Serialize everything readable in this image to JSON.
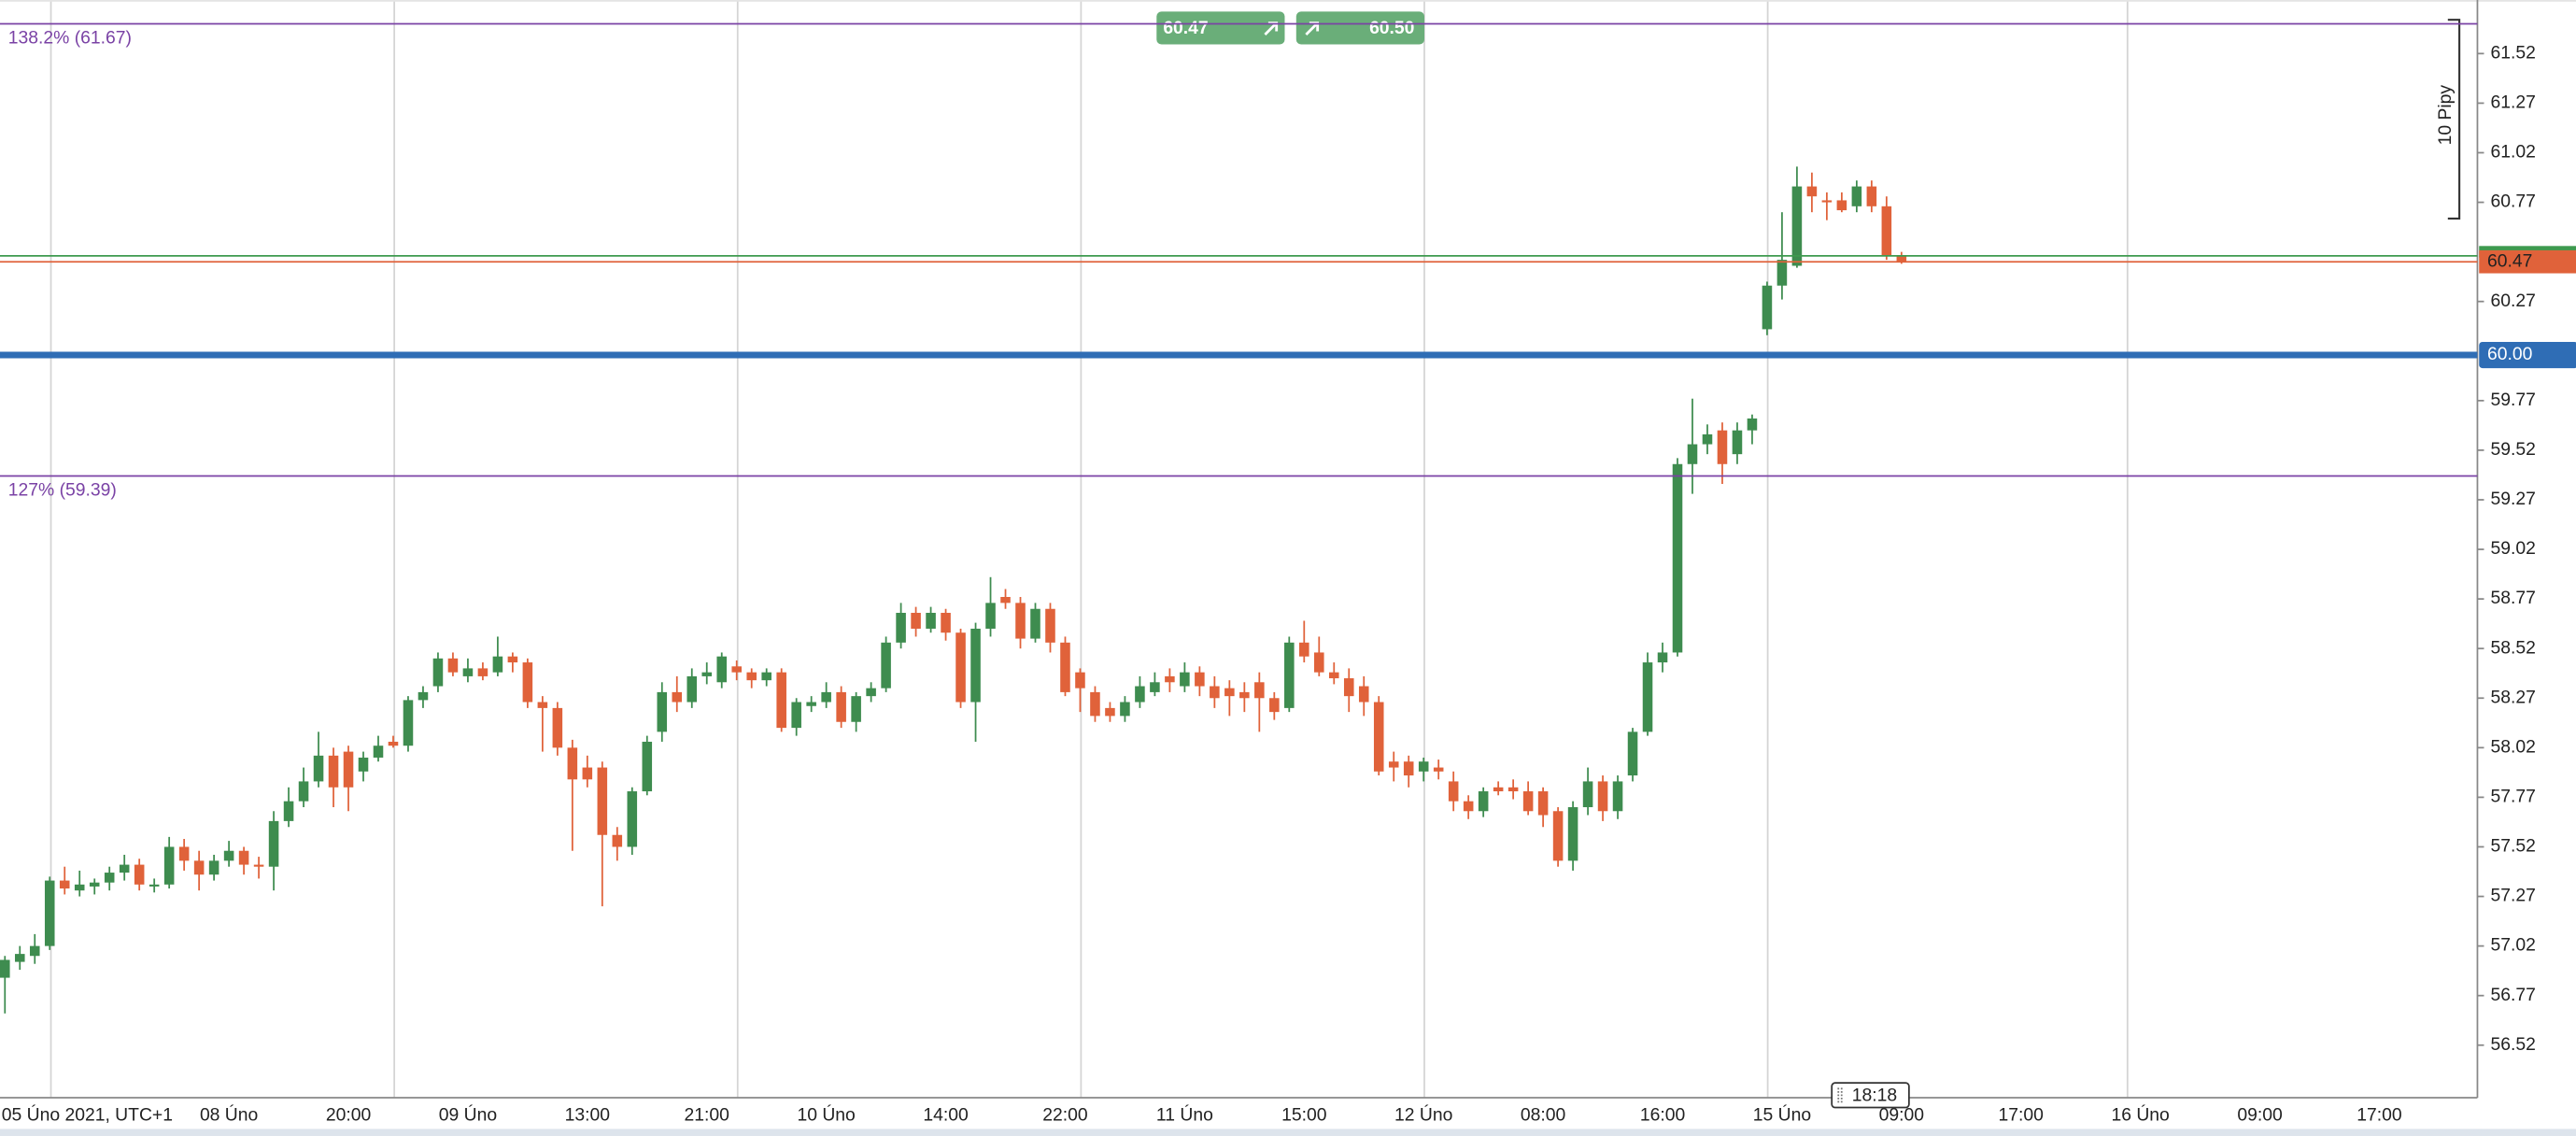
{
  "chart_data": {
    "type": "candlestick",
    "categories": [
      null,
      null,
      null,
      "05 Úno 2021, UTC+1",
      null,
      null,
      null,
      null,
      null,
      null,
      null,
      null,
      null,
      null,
      null,
      "08 Úno",
      null,
      null,
      null,
      null,
      null,
      null,
      null,
      "20:00",
      null,
      null,
      null,
      null,
      null,
      null,
      null,
      "09 Úno",
      null,
      null,
      null,
      null,
      null,
      null,
      null,
      "13:00",
      null,
      null,
      null,
      null,
      null,
      null,
      null,
      "21:00",
      null,
      null,
      null,
      null,
      null,
      null,
      null,
      "10 Úno",
      null,
      null,
      null,
      null,
      null,
      null,
      null,
      "14:00",
      null,
      null,
      null,
      null,
      null,
      null,
      null,
      "22:00",
      null,
      null,
      null,
      null,
      null,
      null,
      null,
      "11 Úno",
      null,
      null,
      null,
      null,
      null,
      null,
      null,
      "15:00",
      null,
      null,
      null,
      null,
      null,
      null,
      null,
      "12 Úno",
      null,
      null,
      null,
      null,
      null,
      null,
      null,
      "08:00",
      null,
      null,
      null,
      null,
      null,
      null,
      null,
      "16:00",
      null,
      null,
      null,
      null,
      null,
      null,
      null,
      "15 Úno",
      null,
      null,
      null,
      null,
      null,
      null,
      null,
      "09:00",
      null,
      null,
      null,
      null,
      null,
      null,
      null,
      "17:00",
      null,
      null,
      null,
      null,
      null,
      null,
      null,
      "16 Úno",
      null,
      null,
      null,
      null,
      null,
      null,
      null,
      "09:00",
      null,
      null,
      null,
      null,
      null,
      null,
      null,
      "17:00",
      null,
      null,
      null,
      null,
      null,
      null
    ],
    "open": [
      56.86,
      56.94,
      56.97,
      57.02,
      57.35,
      57.3,
      57.32,
      57.34,
      57.39,
      57.43,
      57.32,
      57.33,
      57.52,
      57.45,
      57.38,
      57.45,
      57.5,
      57.43,
      57.42,
      57.65,
      57.75,
      57.85,
      57.98,
      58.0,
      57.9,
      57.97,
      58.05,
      58.03,
      58.26,
      58.33,
      58.47,
      58.38,
      58.42,
      58.4,
      58.48,
      58.45,
      58.25,
      58.22,
      58.02,
      57.92,
      57.92,
      57.58,
      57.52,
      57.8,
      58.1,
      58.3,
      58.25,
      58.38,
      58.35,
      58.43,
      58.4,
      58.36,
      58.4,
      58.12,
      58.23,
      58.25,
      58.3,
      58.15,
      58.28,
      58.32,
      58.55,
      58.7,
      58.62,
      58.7,
      58.6,
      58.25,
      58.62,
      58.78,
      58.75,
      58.57,
      58.72,
      58.55,
      58.4,
      58.3,
      58.22,
      58.18,
      58.25,
      58.3,
      58.38,
      58.33,
      58.4,
      58.33,
      58.32,
      58.3,
      58.35,
      58.27,
      58.22,
      58.55,
      58.5,
      58.4,
      58.37,
      58.33,
      58.25,
      57.95,
      57.95,
      57.9,
      57.92,
      57.85,
      57.75,
      57.7,
      57.82,
      57.82,
      57.8,
      57.8,
      57.7,
      57.45,
      57.72,
      57.85,
      57.7,
      57.88,
      58.1,
      58.45,
      58.5,
      59.45,
      59.55,
      59.62,
      59.5,
      59.62,
      60.13,
      60.35,
      60.45,
      60.85,
      60.78,
      60.78,
      60.75,
      60.85,
      60.75,
      60.5,
      null,
      null,
      null,
      null,
      null,
      null,
      null,
      null,
      null,
      null,
      null,
      null,
      null,
      null,
      null,
      null,
      null,
      null,
      null,
      null,
      null,
      null,
      null,
      null,
      null,
      null,
      null,
      null,
      null,
      null,
      null,
      null,
      null,
      null,
      null,
      null,
      null,
      null
    ],
    "high": [
      56.97,
      57.02,
      57.08,
      57.37,
      57.42,
      57.4,
      57.36,
      57.42,
      57.48,
      57.46,
      57.36,
      57.57,
      57.56,
      57.5,
      57.48,
      57.55,
      57.52,
      57.47,
      57.7,
      57.82,
      57.92,
      58.1,
      58.02,
      58.03,
      58.0,
      58.08,
      58.08,
      58.28,
      58.33,
      58.5,
      58.5,
      58.47,
      58.45,
      58.58,
      58.5,
      58.47,
      58.28,
      58.25,
      58.06,
      57.98,
      57.95,
      57.62,
      57.82,
      58.08,
      58.35,
      58.38,
      58.42,
      58.45,
      58.5,
      58.46,
      58.42,
      58.42,
      58.42,
      58.27,
      58.28,
      58.35,
      58.33,
      58.3,
      58.35,
      58.58,
      58.75,
      58.73,
      58.73,
      58.72,
      58.62,
      58.65,
      58.88,
      58.82,
      58.78,
      58.75,
      58.75,
      58.58,
      58.42,
      58.33,
      58.25,
      58.28,
      58.38,
      58.4,
      58.42,
      58.45,
      58.43,
      58.38,
      58.36,
      58.35,
      58.4,
      58.3,
      58.58,
      58.66,
      58.58,
      58.45,
      58.42,
      58.38,
      58.28,
      58.0,
      57.98,
      57.97,
      57.96,
      57.9,
      57.78,
      57.82,
      57.85,
      57.86,
      57.85,
      57.82,
      57.72,
      57.75,
      57.92,
      57.88,
      57.88,
      58.12,
      58.5,
      58.55,
      59.48,
      59.78,
      59.65,
      59.66,
      59.66,
      59.7,
      60.37,
      60.72,
      60.95,
      60.92,
      60.82,
      60.82,
      60.88,
      60.88,
      60.8,
      60.52,
      null,
      null,
      null,
      null,
      null,
      null,
      null,
      null,
      null,
      null,
      null,
      null,
      null,
      null,
      null,
      null,
      null,
      null,
      null,
      null,
      null,
      null,
      null,
      null,
      null,
      null,
      null,
      null,
      null,
      null,
      null,
      null,
      null,
      null,
      null,
      null,
      null,
      null
    ],
    "low": [
      56.68,
      56.9,
      56.93,
      57.0,
      57.28,
      57.27,
      57.28,
      57.3,
      57.35,
      57.3,
      57.29,
      57.31,
      57.4,
      57.3,
      57.35,
      57.42,
      57.38,
      57.36,
      57.3,
      57.62,
      57.72,
      57.82,
      57.72,
      57.7,
      57.85,
      57.95,
      58.02,
      58.0,
      58.22,
      58.3,
      58.38,
      58.35,
      58.36,
      58.38,
      58.4,
      58.22,
      58.0,
      57.98,
      57.5,
      57.82,
      57.22,
      57.45,
      57.48,
      57.78,
      58.05,
      58.2,
      58.22,
      58.34,
      58.32,
      58.36,
      58.32,
      58.33,
      58.1,
      58.08,
      58.2,
      58.22,
      58.12,
      58.1,
      58.25,
      58.3,
      58.52,
      58.58,
      58.6,
      58.56,
      58.22,
      58.05,
      58.58,
      58.72,
      58.52,
      58.55,
      58.5,
      58.28,
      58.2,
      58.15,
      58.15,
      58.15,
      58.22,
      58.28,
      58.3,
      58.3,
      58.28,
      58.22,
      58.18,
      58.2,
      58.1,
      58.16,
      58.2,
      58.45,
      58.38,
      58.34,
      58.2,
      58.18,
      57.88,
      57.85,
      57.82,
      57.85,
      57.86,
      57.7,
      57.66,
      57.67,
      57.78,
      57.76,
      57.68,
      57.62,
      57.42,
      57.4,
      57.68,
      57.65,
      57.66,
      57.85,
      58.08,
      58.4,
      58.48,
      59.3,
      59.5,
      59.35,
      59.45,
      59.55,
      60.1,
      60.28,
      60.44,
      60.72,
      60.68,
      60.72,
      60.72,
      60.72,
      60.48,
      60.46,
      null,
      null,
      null,
      null,
      null,
      null,
      null,
      null,
      null,
      null,
      null,
      null,
      null,
      null,
      null,
      null,
      null,
      null,
      null,
      null,
      null,
      null,
      null,
      null,
      null,
      null,
      null,
      null,
      null,
      null,
      null,
      null,
      null,
      null,
      null,
      null,
      null,
      null
    ],
    "close": [
      56.95,
      56.98,
      57.02,
      57.35,
      57.31,
      57.33,
      57.34,
      57.39,
      57.43,
      57.33,
      57.33,
      57.52,
      57.45,
      57.38,
      57.45,
      57.5,
      57.43,
      57.42,
      57.65,
      57.75,
      57.85,
      57.98,
      57.82,
      57.82,
      57.97,
      58.03,
      58.03,
      58.26,
      58.3,
      58.47,
      58.4,
      58.42,
      58.38,
      58.48,
      58.45,
      58.25,
      58.22,
      58.02,
      57.86,
      57.86,
      57.58,
      57.52,
      57.8,
      58.05,
      58.3,
      58.25,
      58.38,
      58.4,
      58.48,
      58.4,
      58.36,
      58.4,
      58.12,
      58.25,
      58.25,
      58.3,
      58.15,
      58.28,
      58.32,
      58.55,
      58.7,
      58.62,
      58.7,
      58.6,
      58.25,
      58.62,
      58.75,
      58.75,
      58.57,
      58.72,
      58.55,
      58.3,
      58.32,
      58.18,
      58.18,
      58.25,
      58.33,
      58.35,
      58.35,
      58.4,
      58.33,
      58.27,
      58.28,
      58.27,
      58.27,
      58.2,
      58.55,
      58.48,
      58.4,
      58.37,
      58.28,
      58.25,
      57.9,
      57.92,
      57.88,
      57.95,
      57.9,
      57.75,
      57.7,
      57.8,
      57.8,
      57.8,
      57.7,
      57.68,
      57.45,
      57.72,
      57.85,
      57.7,
      57.85,
      58.1,
      58.45,
      58.5,
      59.45,
      59.55,
      59.6,
      59.45,
      59.62,
      59.68,
      60.35,
      60.48,
      60.85,
      60.8,
      60.77,
      60.73,
      60.85,
      60.75,
      60.5,
      60.47,
      null,
      null,
      null,
      null,
      null,
      null,
      null,
      null,
      null,
      null,
      null,
      null,
      null,
      null,
      null,
      null,
      null,
      null,
      null,
      null,
      null,
      null,
      null,
      null,
      null,
      null,
      null,
      null,
      null,
      null,
      null,
      null,
      null,
      null,
      null,
      null,
      null,
      null
    ],
    "up_color": "#3e8c4f",
    "down_color": "#e0623a",
    "ylim": [
      56.28,
      61.79
    ],
    "yticks": [
      56.52,
      56.77,
      57.02,
      57.27,
      57.52,
      57.77,
      58.02,
      58.27,
      58.52,
      58.77,
      59.02,
      59.27,
      59.52,
      59.77,
      60.27,
      60.77,
      61.02,
      61.27,
      61.52
    ],
    "levels": [
      {
        "label": "138.2% (61.67)",
        "value": 61.67,
        "color": "#7a42a5"
      },
      {
        "label": "127% (59.39)",
        "value": 59.39,
        "color": "#7a42a5"
      }
    ],
    "ask": {
      "value": 60.5,
      "label": "60.50",
      "color": "#3e9a4f"
    },
    "bid": {
      "value": 60.47,
      "color": "#e0623a"
    },
    "alert": {
      "value": 60,
      "label": "60.00",
      "color": "#2f6db5"
    },
    "ruler_label": "10 Pipy",
    "cursor_time": "18:18"
  }
}
